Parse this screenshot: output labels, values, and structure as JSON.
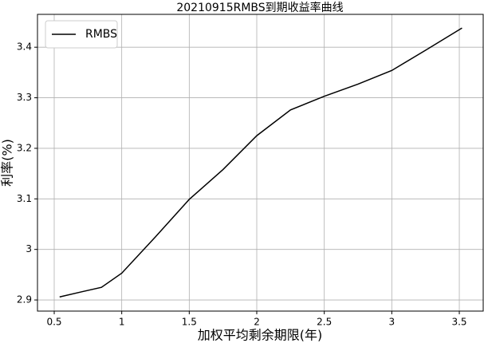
{
  "chart_data": {
    "type": "line",
    "title": "20210915RMBS到期收益率曲线",
    "x_label": "加权平均剩余期限(年)",
    "y_label": "利率(%)",
    "x": [
      0.54,
      0.7,
      0.85,
      1.0,
      1.25,
      1.5,
      1.75,
      2.0,
      2.25,
      2.5,
      2.75,
      3.0,
      3.25,
      3.52
    ],
    "series": [
      {
        "name": "RMBS",
        "color": "#000000",
        "values": [
          2.906,
          2.916,
          2.925,
          2.953,
          3.025,
          3.099,
          3.158,
          3.225,
          3.276,
          3.303,
          3.327,
          3.354,
          3.394,
          3.438
        ]
      }
    ],
    "xlim": [
      0.376,
      3.677
    ],
    "ylim": [
      2.878,
      3.465
    ],
    "xticks": [
      0.5,
      1.0,
      1.5,
      2.0,
      2.5,
      3.0,
      3.5
    ],
    "yticks": [
      2.9,
      3.0,
      3.1,
      3.2,
      3.3,
      3.4
    ],
    "grid": true,
    "legend": "upper left"
  }
}
